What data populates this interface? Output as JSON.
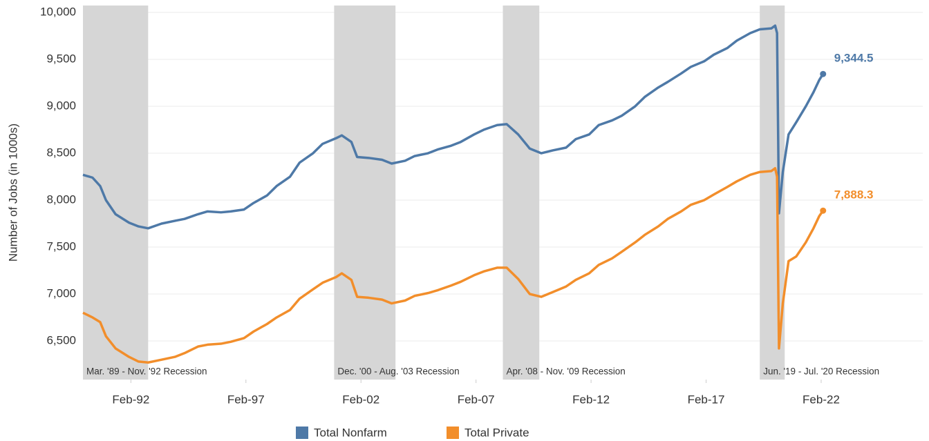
{
  "chart_data": {
    "type": "line",
    "y_label": "Number of Jobs (in 1000s)",
    "x": [
      "1990-01",
      "1990-06",
      "1990-10",
      "1991-01",
      "1991-06",
      "1992-01",
      "1992-06",
      "1992-11",
      "1993-06",
      "1994-01",
      "1994-06",
      "1995-01",
      "1995-06",
      "1996-01",
      "1996-06",
      "1997-01",
      "1997-06",
      "1998-01",
      "1998-06",
      "1999-01",
      "1999-06",
      "2000-01",
      "2000-06",
      "2001-01",
      "2001-04",
      "2001-09",
      "2001-12",
      "2002-06",
      "2003-01",
      "2003-06",
      "2004-01",
      "2004-06",
      "2005-01",
      "2005-06",
      "2006-01",
      "2006-06",
      "2007-01",
      "2007-06",
      "2008-01",
      "2008-06",
      "2008-12",
      "2009-06",
      "2009-12",
      "2010-06",
      "2011-01",
      "2011-06",
      "2012-01",
      "2012-06",
      "2013-01",
      "2013-06",
      "2014-01",
      "2014-06",
      "2015-01",
      "2015-06",
      "2016-01",
      "2016-06",
      "2017-01",
      "2017-06",
      "2018-01",
      "2018-06",
      "2019-01",
      "2019-06",
      "2019-12",
      "2020-02",
      "2020-03",
      "2020-04",
      "2020-06",
      "2020-09",
      "2021-01",
      "2021-06",
      "2021-10",
      "2022-01",
      "2022-03"
    ],
    "series": [
      {
        "name": "Total Nonfarm",
        "color": "#4e79a7",
        "values": [
          8270,
          8240,
          8150,
          8000,
          7850,
          7760,
          7720,
          7700,
          7750,
          7780,
          7800,
          7850,
          7880,
          7870,
          7880,
          7900,
          7970,
          8050,
          8150,
          8250,
          8400,
          8500,
          8600,
          8660,
          8690,
          8620,
          8460,
          8450,
          8430,
          8390,
          8420,
          8470,
          8500,
          8540,
          8580,
          8620,
          8700,
          8750,
          8800,
          8810,
          8700,
          8550,
          8500,
          8530,
          8560,
          8650,
          8700,
          8800,
          8850,
          8900,
          9000,
          9100,
          9200,
          9260,
          9350,
          9420,
          9480,
          9550,
          9620,
          9700,
          9780,
          9820,
          9830,
          9860,
          9780,
          7860,
          8300,
          8700,
          8830,
          9000,
          9150,
          9280,
          9344.5
        ],
        "value_labels": [
          null,
          null,
          null,
          null,
          null,
          null,
          null,
          null,
          null,
          null,
          null,
          null,
          null,
          null,
          null,
          null,
          null,
          null,
          null,
          null,
          null,
          null,
          null,
          null,
          null,
          null,
          null,
          null,
          null,
          null,
          null,
          null,
          null,
          null,
          null,
          null,
          null,
          null,
          null,
          null,
          null,
          null,
          null,
          null,
          null,
          null,
          null,
          null,
          null,
          null,
          null,
          null,
          null,
          null,
          null,
          null,
          null,
          null,
          null,
          null,
          null,
          null,
          null,
          null,
          null,
          null,
          null,
          null,
          null,
          null,
          null,
          null,
          "9,344.5"
        ]
      },
      {
        "name": "Total Private",
        "color": "#f28e2b",
        "values": [
          6800,
          6750,
          6700,
          6550,
          6420,
          6330,
          6280,
          6270,
          6300,
          6330,
          6370,
          6440,
          6460,
          6470,
          6490,
          6530,
          6600,
          6680,
          6750,
          6830,
          6950,
          7050,
          7120,
          7180,
          7220,
          7150,
          6970,
          6960,
          6940,
          6900,
          6930,
          6980,
          7010,
          7040,
          7090,
          7130,
          7200,
          7240,
          7280,
          7280,
          7160,
          7000,
          6970,
          7020,
          7080,
          7150,
          7220,
          7310,
          7380,
          7450,
          7550,
          7630,
          7720,
          7800,
          7880,
          7950,
          8000,
          8060,
          8140,
          8200,
          8270,
          8300,
          8310,
          8340,
          8250,
          6420,
          6900,
          7350,
          7400,
          7550,
          7700,
          7830,
          7888.3
        ],
        "value_labels": [
          null,
          null,
          null,
          null,
          null,
          null,
          null,
          null,
          null,
          null,
          null,
          null,
          null,
          null,
          null,
          null,
          null,
          null,
          null,
          null,
          null,
          null,
          null,
          null,
          null,
          null,
          null,
          null,
          null,
          null,
          null,
          null,
          null,
          null,
          null,
          null,
          null,
          null,
          null,
          null,
          null,
          null,
          null,
          null,
          null,
          null,
          null,
          null,
          null,
          null,
          null,
          null,
          null,
          null,
          null,
          null,
          null,
          null,
          null,
          null,
          null,
          null,
          null,
          null,
          null,
          null,
          null,
          null,
          null,
          null,
          null,
          null,
          "7,888.3"
        ]
      }
    ],
    "xlim": [
      "1990-01",
      "2026-07"
    ],
    "xticks": [
      {
        "value": "1992-02",
        "label": "Feb-92"
      },
      {
        "value": "1997-02",
        "label": "Feb-97"
      },
      {
        "value": "2002-02",
        "label": "Feb-02"
      },
      {
        "value": "2007-02",
        "label": "Feb-07"
      },
      {
        "value": "2012-02",
        "label": "Feb-12"
      },
      {
        "value": "2017-02",
        "label": "Feb-17"
      },
      {
        "value": "2022-02",
        "label": "Feb-22"
      }
    ],
    "ylim": [
      6088,
      10074
    ],
    "yticks": [
      {
        "value": 6500,
        "label": "6,500"
      },
      {
        "value": 7000,
        "label": "7,000"
      },
      {
        "value": 7500,
        "label": "7,500"
      },
      {
        "value": 8000,
        "label": "8,000"
      },
      {
        "value": 8500,
        "label": "8,500"
      },
      {
        "value": 9000,
        "label": "9,000"
      },
      {
        "value": 9500,
        "label": "9,500"
      },
      {
        "value": 10000,
        "label": "10,000"
      }
    ],
    "grid": true,
    "shaded_regions": [
      {
        "start": "1989-03",
        "end": "1992-11",
        "label": "Mar. '89 - Nov. '92 Recession"
      },
      {
        "start": "2000-12",
        "end": "2003-08",
        "label": "Dec. '00 - Aug. '03 Recession"
      },
      {
        "start": "2008-04",
        "end": "2009-11",
        "label": "Apr. '08 - Nov. '09 Recession"
      },
      {
        "start": "2019-06",
        "end": "2020-07",
        "label": "Jun. '19 - Jul. '20 Recession"
      }
    ],
    "legend": "bottom"
  }
}
